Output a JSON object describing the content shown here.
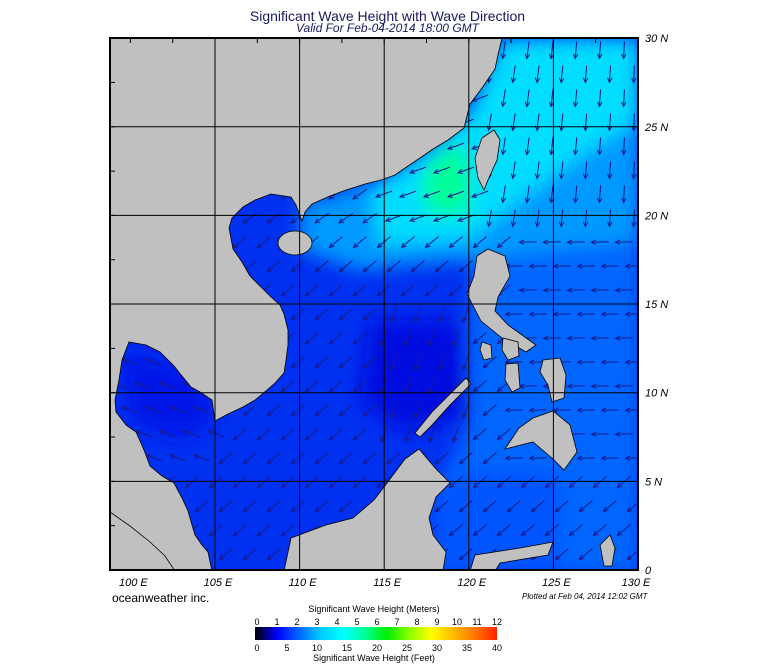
{
  "header": {
    "title": "Significant Wave Height with Wave Direction",
    "subtitle": "Valid For Feb-04-2014 18:00 GMT"
  },
  "map": {
    "region": "South China Sea",
    "lon_range": [
      100,
      130
    ],
    "lat_range": [
      0,
      30
    ],
    "grid_on": true,
    "land_color": "#c0c0c0",
    "lon_labels": [
      {
        "value": 100,
        "text": "100 E"
      },
      {
        "value": 105,
        "text": "105 E"
      },
      {
        "value": 110,
        "text": "110 E"
      },
      {
        "value": 115,
        "text": "115 E"
      },
      {
        "value": 120,
        "text": "120 E"
      },
      {
        "value": 125,
        "text": "125 E"
      },
      {
        "value": 130,
        "text": "130 E"
      }
    ],
    "lat_labels": [
      {
        "value": 30,
        "text": "30 N"
      },
      {
        "value": 25,
        "text": "25 N"
      },
      {
        "value": 20,
        "text": "20 N"
      },
      {
        "value": 15,
        "text": "15 N"
      },
      {
        "value": 10,
        "text": "10 N"
      },
      {
        "value": 5,
        "text": "5 N"
      },
      {
        "value": 0,
        "text": "0"
      }
    ],
    "arrow_color": "#1a1a8a"
  },
  "footer": {
    "brand": "oceanweather inc.",
    "plotted": "Plotted at Feb 04, 2014 12:02 GMT"
  },
  "colorbar": {
    "title_top": "Significant Wave Height (Meters)",
    "title_bottom": "Significant Wave Height (Feet)",
    "meters": [
      "0",
      "1",
      "2",
      "3",
      "4",
      "5",
      "6",
      "7",
      "8",
      "9",
      "10",
      "11",
      "12"
    ],
    "feet": [
      "0",
      "5",
      "10",
      "15",
      "20",
      "25",
      "30",
      "35",
      "40"
    ],
    "meters_max": 12,
    "feet_max": 40,
    "colors": [
      "#000000",
      "#0000ff",
      "#0066ff",
      "#00ccff",
      "#00ffff",
      "#00ff99",
      "#00ee00",
      "#88ff00",
      "#ffff00",
      "#ffbb00",
      "#ff7700",
      "#ff2200"
    ]
  }
}
